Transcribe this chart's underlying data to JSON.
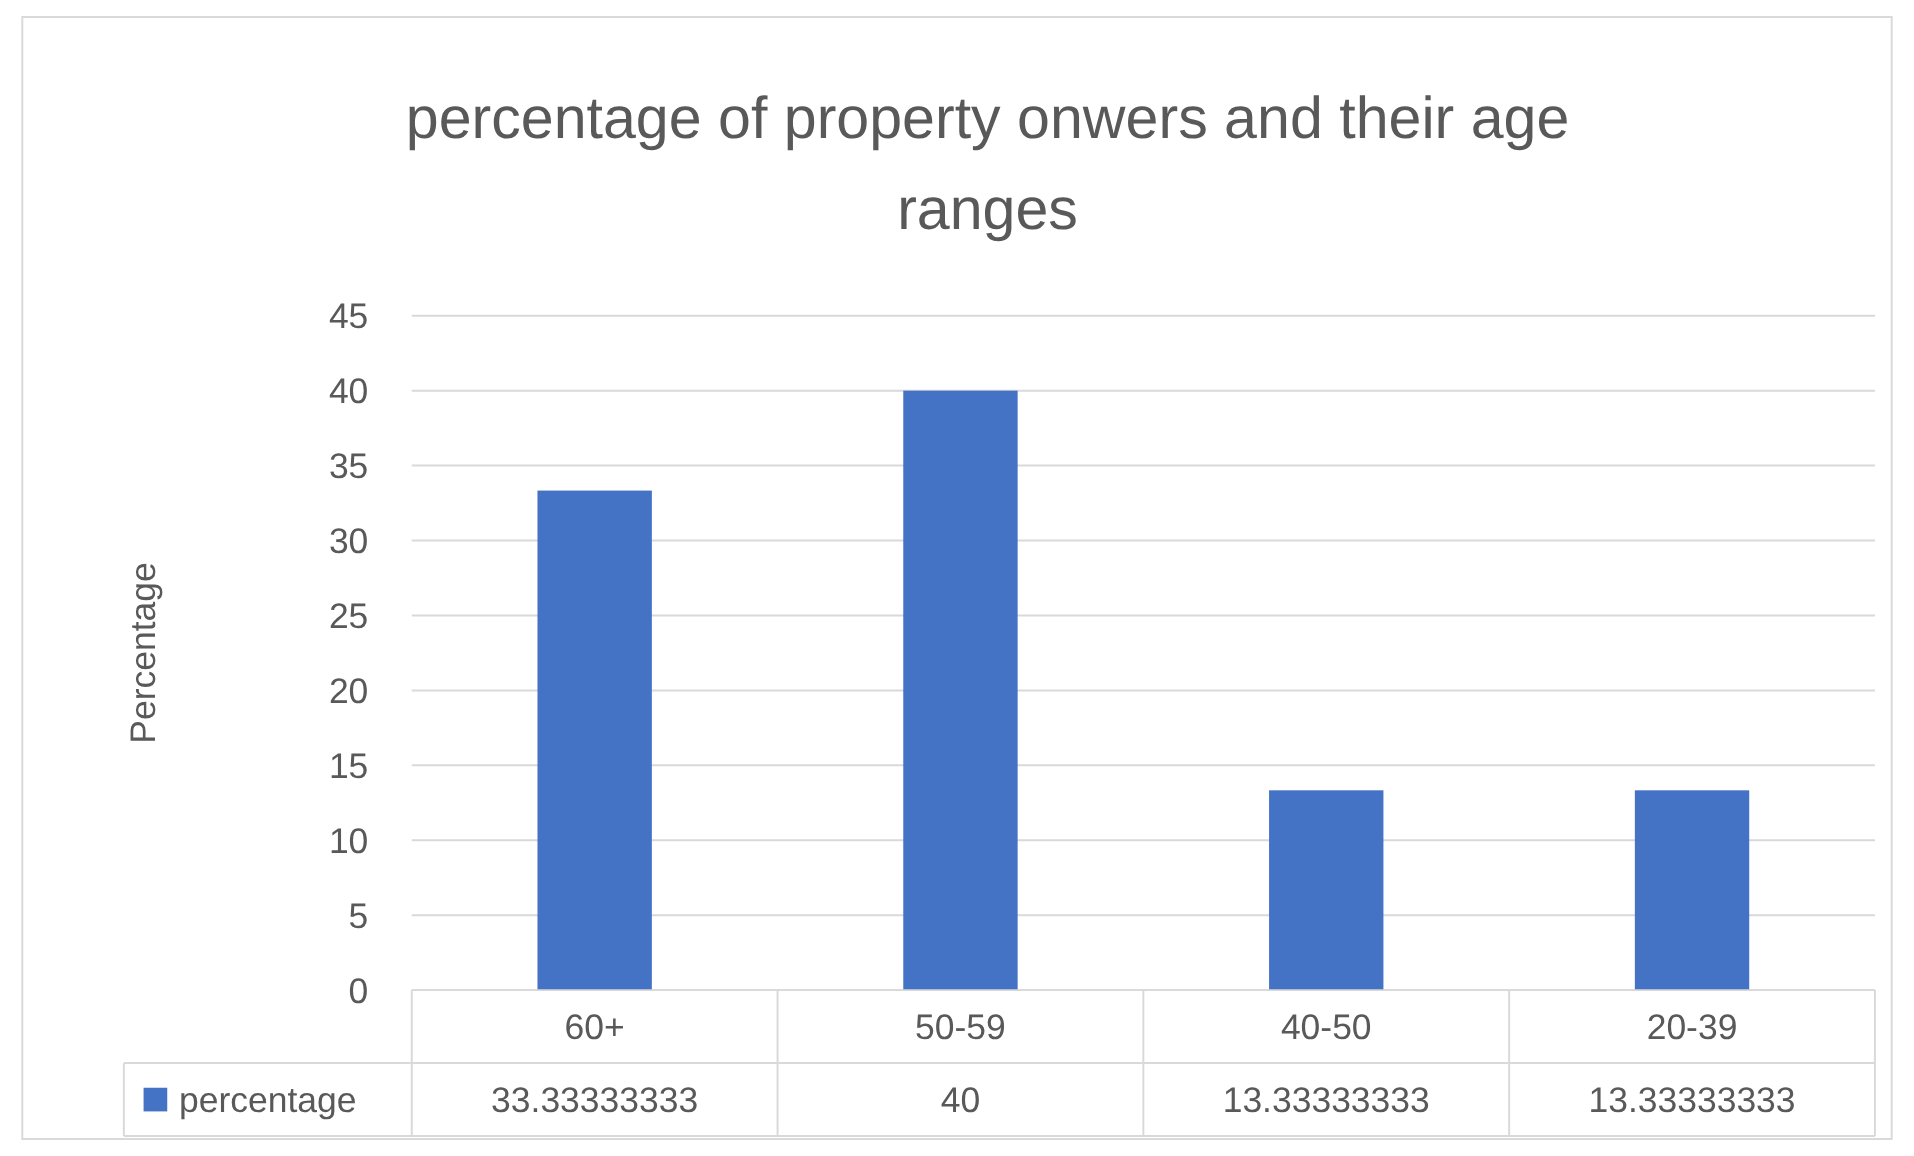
{
  "chart_data": {
    "type": "bar",
    "title": "percentage of property onwers and their age ranges",
    "ylabel": "Percentage",
    "categories": [
      "60+",
      "50-59",
      "40-50",
      "20-39"
    ],
    "series": [
      {
        "name": "percentage",
        "color": "#4472c4",
        "values": [
          33.33333333,
          40,
          13.33333333,
          13.33333333
        ]
      }
    ],
    "ylim": [
      0,
      45
    ],
    "yticks": [
      0,
      5,
      10,
      15,
      20,
      25,
      30,
      35,
      40,
      45
    ],
    "grid": "y",
    "legend": "bottom",
    "data_labels": true
  }
}
